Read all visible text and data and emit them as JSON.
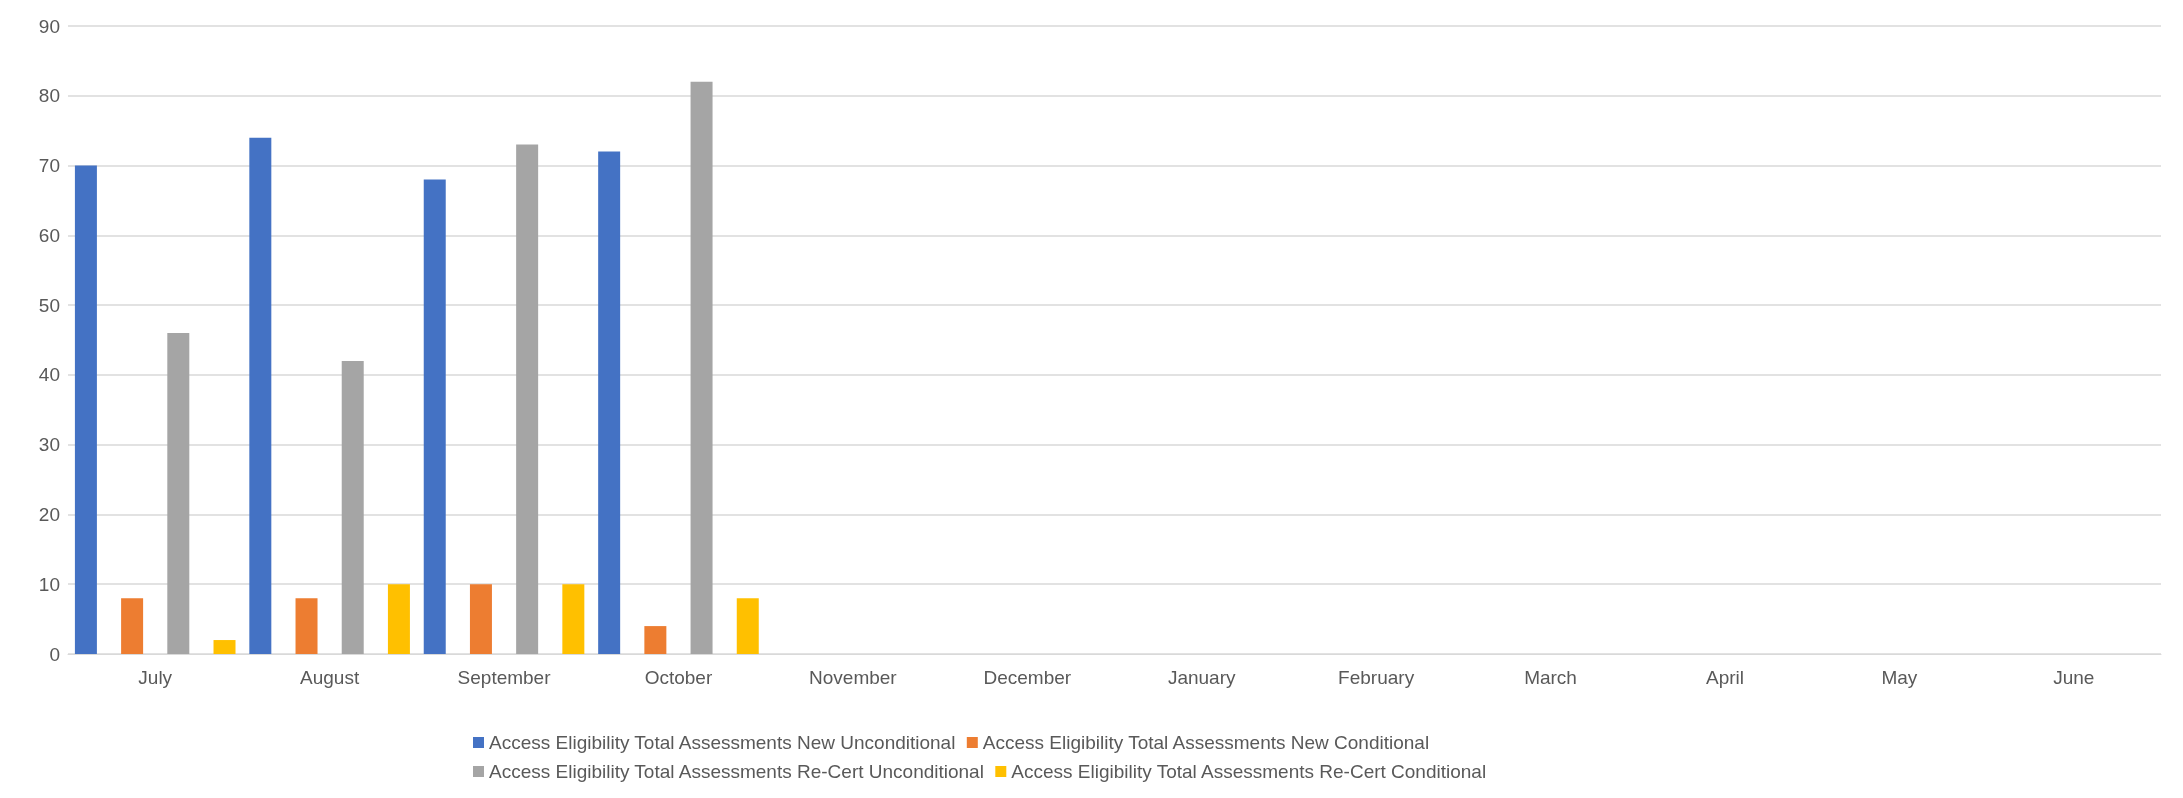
{
  "chart_data": {
    "type": "bar",
    "categories": [
      "July",
      "August",
      "September",
      "October",
      "November",
      "December",
      "January",
      "February",
      "March",
      "April",
      "May",
      "June"
    ],
    "series": [
      {
        "name": "Access Eligibility Total Assessments New Unconditional",
        "color": "#4472c4",
        "values": [
          70,
          74,
          68,
          72,
          null,
          null,
          null,
          null,
          null,
          null,
          null,
          null
        ]
      },
      {
        "name": "Access Eligibility Total Assessments New Conditional",
        "color": "#ed7d31",
        "values": [
          8,
          8,
          10,
          4,
          null,
          null,
          null,
          null,
          null,
          null,
          null,
          null
        ]
      },
      {
        "name": "Access Eligibility Total Assessments Re-Cert Unconditional",
        "color": "#a5a5a5",
        "values": [
          46,
          42,
          73,
          82,
          null,
          null,
          null,
          null,
          null,
          null,
          null,
          null
        ]
      },
      {
        "name": "Access Eligibility Total Assessments Re-Cert Conditional",
        "color": "#ffc000",
        "values": [
          2,
          10,
          10,
          8,
          null,
          null,
          null,
          null,
          null,
          null,
          null,
          null
        ]
      }
    ],
    "ylim": [
      0,
      90
    ],
    "yticks": [
      0,
      10,
      20,
      30,
      40,
      50,
      60,
      70,
      80,
      90
    ],
    "grid": "y",
    "legend": "bottom"
  }
}
